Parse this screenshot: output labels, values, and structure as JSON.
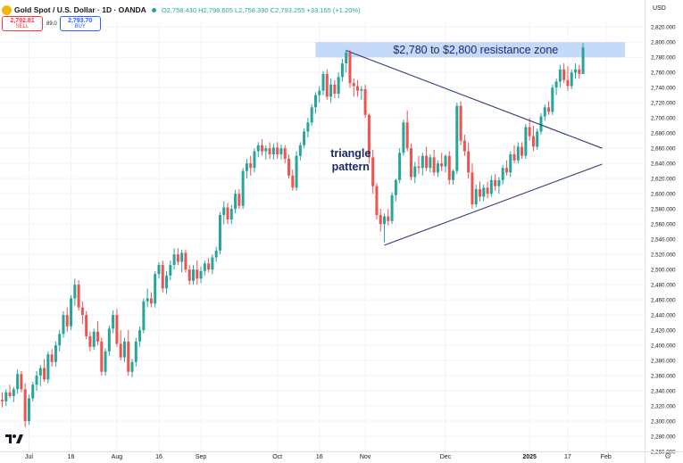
{
  "header": {
    "symbol_title": "Gold Spot / U.S. Dollar · 1D · OANDA",
    "open": "O2,758.430",
    "high": "H2,798.605",
    "low": "L2,758.390",
    "close": "C2,793.255",
    "change": "+33.165 (+1.20%)",
    "sell_price": "2,792.81",
    "sell_label": "SELL",
    "spread": "89.0",
    "buy_price": "2,793.70",
    "buy_label": "BUY",
    "currency": "USD",
    "colors": {
      "up": "#26a69a",
      "down": "#ef5350",
      "logo": "#f0b90b",
      "sell": "#f23645",
      "buy": "#2962ff"
    }
  },
  "chart_data": {
    "type": "candlestick",
    "title": "",
    "xlabel": "",
    "ylabel": "",
    "currency": "USD",
    "ylim": [
      2260,
      2825
    ],
    "y_ticks": [
      2260,
      2280,
      2300,
      2320,
      2340,
      2360,
      2380,
      2400,
      2420,
      2440,
      2460,
      2480,
      2500,
      2520,
      2540,
      2560,
      2580,
      2600,
      2620,
      2640,
      2660,
      2680,
      2700,
      2720,
      2740,
      2760,
      2780,
      2800,
      2820
    ],
    "x_tick_labels": [
      {
        "label": "Jul",
        "index": 7
      },
      {
        "label": "16",
        "index": 18
      },
      {
        "label": "Aug",
        "index": 30
      },
      {
        "label": "16",
        "index": 41
      },
      {
        "label": "Sep",
        "index": 52
      },
      {
        "label": "Oct",
        "index": 72
      },
      {
        "label": "16",
        "index": 83
      },
      {
        "label": "Nov",
        "index": 95
      },
      {
        "label": "Dec",
        "index": 116
      },
      {
        "label": "2025",
        "index": 138,
        "bold": true
      },
      {
        "label": "17",
        "index": 148
      },
      {
        "label": "Feb",
        "index": 158
      }
    ],
    "ohlc": [
      [
        2328,
        2338,
        2318,
        2326
      ],
      [
        2326,
        2342,
        2320,
        2338
      ],
      [
        2338,
        2348,
        2330,
        2333
      ],
      [
        2333,
        2345,
        2325,
        2342
      ],
      [
        2342,
        2368,
        2336,
        2362
      ],
      [
        2362,
        2366,
        2338,
        2342
      ],
      [
        2342,
        2350,
        2292,
        2300
      ],
      [
        2300,
        2335,
        2295,
        2330
      ],
      [
        2330,
        2352,
        2326,
        2348
      ],
      [
        2348,
        2366,
        2340,
        2360
      ],
      [
        2360,
        2374,
        2346,
        2370
      ],
      [
        2370,
        2382,
        2352,
        2355
      ],
      [
        2355,
        2392,
        2350,
        2388
      ],
      [
        2388,
        2395,
        2372,
        2378
      ],
      [
        2378,
        2405,
        2372,
        2400
      ],
      [
        2400,
        2420,
        2392,
        2415
      ],
      [
        2415,
        2445,
        2410,
        2440
      ],
      [
        2440,
        2450,
        2418,
        2425
      ],
      [
        2425,
        2466,
        2420,
        2462
      ],
      [
        2462,
        2488,
        2452,
        2480
      ],
      [
        2480,
        2486,
        2446,
        2450
      ],
      [
        2450,
        2458,
        2428,
        2440
      ],
      [
        2440,
        2445,
        2408,
        2412
      ],
      [
        2412,
        2418,
        2392,
        2398
      ],
      [
        2398,
        2422,
        2394,
        2418
      ],
      [
        2418,
        2432,
        2400,
        2405
      ],
      [
        2405,
        2410,
        2360,
        2365
      ],
      [
        2365,
        2396,
        2360,
        2392
      ],
      [
        2392,
        2426,
        2386,
        2422
      ],
      [
        2422,
        2446,
        2416,
        2440
      ],
      [
        2440,
        2448,
        2398,
        2402
      ],
      [
        2402,
        2420,
        2380,
        2384
      ],
      [
        2384,
        2410,
        2378,
        2405
      ],
      [
        2405,
        2420,
        2360,
        2365
      ],
      [
        2365,
        2382,
        2358,
        2378
      ],
      [
        2378,
        2410,
        2372,
        2405
      ],
      [
        2405,
        2425,
        2398,
        2420
      ],
      [
        2420,
        2462,
        2416,
        2458
      ],
      [
        2458,
        2475,
        2450,
        2462
      ],
      [
        2462,
        2470,
        2450,
        2455
      ],
      [
        2455,
        2498,
        2450,
        2494
      ],
      [
        2494,
        2510,
        2488,
        2506
      ],
      [
        2506,
        2512,
        2470,
        2475
      ],
      [
        2475,
        2498,
        2468,
        2492
      ],
      [
        2492,
        2512,
        2486,
        2506
      ],
      [
        2506,
        2528,
        2500,
        2520
      ],
      [
        2520,
        2528,
        2506,
        2510
      ],
      [
        2510,
        2526,
        2496,
        2522
      ],
      [
        2522,
        2526,
        2496,
        2500
      ],
      [
        2500,
        2506,
        2480,
        2485
      ],
      [
        2485,
        2506,
        2480,
        2500
      ],
      [
        2500,
        2512,
        2480,
        2488
      ],
      [
        2488,
        2504,
        2482,
        2498
      ],
      [
        2498,
        2512,
        2492,
        2508
      ],
      [
        2508,
        2515,
        2496,
        2500
      ],
      [
        2500,
        2520,
        2494,
        2516
      ],
      [
        2516,
        2530,
        2510,
        2525
      ],
      [
        2525,
        2576,
        2520,
        2572
      ],
      [
        2572,
        2590,
        2560,
        2582
      ],
      [
        2582,
        2588,
        2560,
        2566
      ],
      [
        2566,
        2585,
        2560,
        2580
      ],
      [
        2580,
        2605,
        2574,
        2600
      ],
      [
        2600,
        2606,
        2580,
        2584
      ],
      [
        2584,
        2634,
        2580,
        2630
      ],
      [
        2630,
        2646,
        2620,
        2640
      ],
      [
        2640,
        2650,
        2624,
        2634
      ],
      [
        2634,
        2660,
        2628,
        2656
      ],
      [
        2656,
        2668,
        2648,
        2664
      ],
      [
        2664,
        2672,
        2650,
        2656
      ],
      [
        2656,
        2664,
        2645,
        2660
      ],
      [
        2660,
        2668,
        2646,
        2652
      ],
      [
        2652,
        2666,
        2645,
        2661
      ],
      [
        2661,
        2668,
        2646,
        2652
      ],
      [
        2652,
        2665,
        2645,
        2660
      ],
      [
        2660,
        2664,
        2640,
        2646
      ],
      [
        2646,
        2652,
        2620,
        2624
      ],
      [
        2624,
        2632,
        2604,
        2608
      ],
      [
        2608,
        2656,
        2604,
        2650
      ],
      [
        2650,
        2668,
        2644,
        2664
      ],
      [
        2664,
        2686,
        2660,
        2682
      ],
      [
        2682,
        2700,
        2674,
        2694
      ],
      [
        2694,
        2718,
        2690,
        2714
      ],
      [
        2714,
        2734,
        2706,
        2730
      ],
      [
        2730,
        2742,
        2720,
        2736
      ],
      [
        2736,
        2762,
        2730,
        2758
      ],
      [
        2758,
        2764,
        2724,
        2728
      ],
      [
        2728,
        2752,
        2720,
        2744
      ],
      [
        2744,
        2750,
        2726,
        2732
      ],
      [
        2732,
        2760,
        2726,
        2754
      ],
      [
        2754,
        2778,
        2748,
        2772
      ],
      [
        2772,
        2790,
        2760,
        2786
      ],
      [
        2786,
        2790,
        2740,
        2746
      ],
      [
        2746,
        2752,
        2728,
        2742
      ],
      [
        2742,
        2750,
        2728,
        2736
      ],
      [
        2736,
        2742,
        2724,
        2738
      ],
      [
        2738,
        2744,
        2700,
        2704
      ],
      [
        2704,
        2706,
        2640,
        2648
      ],
      [
        2648,
        2658,
        2600,
        2610
      ],
      [
        2610,
        2614,
        2566,
        2572
      ],
      [
        2572,
        2580,
        2550,
        2560
      ],
      [
        2560,
        2574,
        2536,
        2570
      ],
      [
        2570,
        2580,
        2558,
        2564
      ],
      [
        2564,
        2602,
        2560,
        2598
      ],
      [
        2598,
        2620,
        2590,
        2618
      ],
      [
        2618,
        2660,
        2614,
        2654
      ],
      [
        2654,
        2698,
        2650,
        2694
      ],
      [
        2694,
        2710,
        2656,
        2660
      ],
      [
        2660,
        2666,
        2618,
        2622
      ],
      [
        2622,
        2642,
        2614,
        2636
      ],
      [
        2636,
        2650,
        2626,
        2634
      ],
      [
        2634,
        2654,
        2624,
        2650
      ],
      [
        2650,
        2662,
        2630,
        2634
      ],
      [
        2634,
        2652,
        2628,
        2648
      ],
      [
        2648,
        2658,
        2624,
        2628
      ],
      [
        2628,
        2644,
        2622,
        2640
      ],
      [
        2640,
        2654,
        2630,
        2636
      ],
      [
        2636,
        2652,
        2628,
        2650
      ],
      [
        2650,
        2656,
        2612,
        2618
      ],
      [
        2618,
        2632,
        2612,
        2630
      ],
      [
        2630,
        2720,
        2626,
        2716
      ],
      [
        2716,
        2722,
        2664,
        2670
      ],
      [
        2670,
        2678,
        2650,
        2656
      ],
      [
        2656,
        2668,
        2620,
        2628
      ],
      [
        2628,
        2640,
        2580,
        2586
      ],
      [
        2586,
        2612,
        2582,
        2606
      ],
      [
        2606,
        2616,
        2590,
        2596
      ],
      [
        2596,
        2612,
        2590,
        2608
      ],
      [
        2608,
        2616,
        2594,
        2600
      ],
      [
        2600,
        2624,
        2596,
        2618
      ],
      [
        2618,
        2626,
        2604,
        2610
      ],
      [
        2610,
        2622,
        2600,
        2618
      ],
      [
        2618,
        2638,
        2612,
        2634
      ],
      [
        2634,
        2644,
        2624,
        2628
      ],
      [
        2628,
        2656,
        2622,
        2652
      ],
      [
        2652,
        2664,
        2640,
        2644
      ],
      [
        2644,
        2668,
        2640,
        2662
      ],
      [
        2662,
        2668,
        2646,
        2650
      ],
      [
        2650,
        2692,
        2646,
        2688
      ],
      [
        2688,
        2700,
        2670,
        2676
      ],
      [
        2676,
        2690,
        2656,
        2662
      ],
      [
        2662,
        2686,
        2658,
        2682
      ],
      [
        2682,
        2706,
        2678,
        2702
      ],
      [
        2702,
        2718,
        2696,
        2714
      ],
      [
        2714,
        2722,
        2704,
        2708
      ],
      [
        2708,
        2744,
        2704,
        2740
      ],
      [
        2740,
        2752,
        2730,
        2748
      ],
      [
        2748,
        2770,
        2740,
        2764
      ],
      [
        2764,
        2772,
        2746,
        2750
      ],
      [
        2750,
        2768,
        2736,
        2742
      ],
      [
        2742,
        2764,
        2738,
        2760
      ],
      [
        2760,
        2772,
        2752,
        2764
      ],
      [
        2764,
        2770,
        2752,
        2758
      ],
      [
        2758,
        2799,
        2758,
        2793
      ]
    ],
    "annotations": [
      {
        "type": "zone",
        "from_index": 82,
        "to_index": 163,
        "y_low": 2780,
        "y_high": 2800,
        "label": "$2,780 to $2,800 resistance zone"
      },
      {
        "type": "trendline",
        "from": [
          90,
          2789
        ],
        "to": [
          157,
          2660
        ]
      },
      {
        "type": "trendline",
        "from": [
          100,
          2532
        ],
        "to": [
          157,
          2639
        ]
      },
      {
        "type": "text",
        "lines": [
          "triangle",
          "pattern"
        ],
        "at": [
          76,
          2660
        ]
      }
    ]
  },
  "footer": {
    "settings_icon": "gear-icon",
    "brand_icon": "tradingview-logo-icon"
  }
}
